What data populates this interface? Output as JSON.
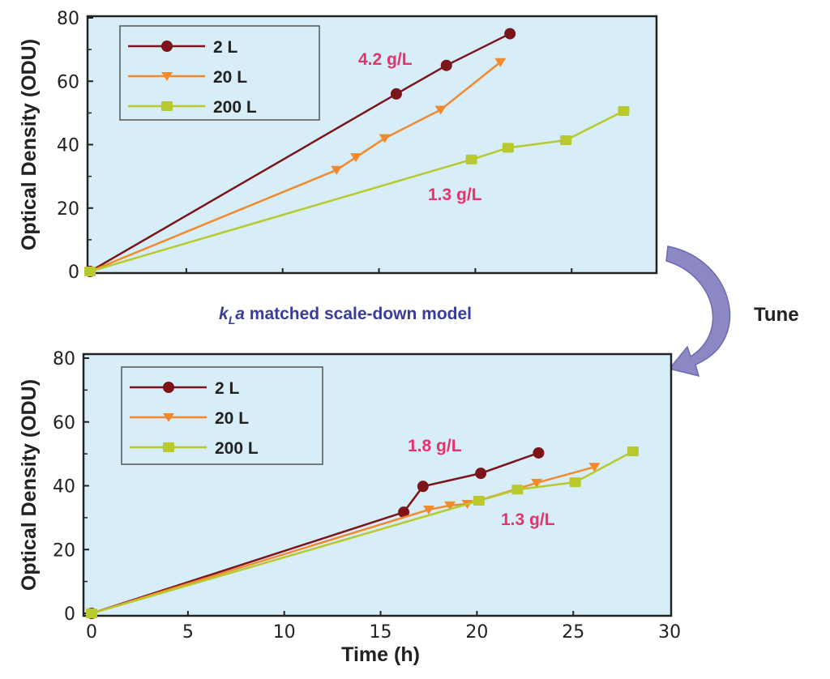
{
  "middle_title": {
    "k": "k",
    "sub": "L",
    "a": "a",
    "rest": " matched scale-down model"
  },
  "tune_label": "Tune",
  "colors": {
    "2L": "#7b1519",
    "20L": "#f28a2d",
    "200L": "#b7c92c",
    "background": "#d7edf7",
    "annotation": "#e6336b"
  },
  "chart_data": [
    {
      "type": "line",
      "title": "",
      "xlabel": "",
      "ylabel": "Optical Density (ODU)",
      "xlim": [
        0,
        30
      ],
      "ylim": [
        0,
        80
      ],
      "yticks": [
        "0",
        "20",
        "40",
        "60",
        "80"
      ],
      "xticks": [],
      "legend": "top-left",
      "annotations": [
        "4.2 g/L",
        "1.3 g/L"
      ],
      "series": [
        {
          "name": "2 L",
          "marker": "circle",
          "x": [
            0,
            15.9,
            18.5,
            21.8
          ],
          "y": [
            0,
            56,
            65,
            75
          ]
        },
        {
          "name": "20 L",
          "marker": "triangle-down",
          "x": [
            0,
            12.8,
            13.8,
            15.3,
            18.2,
            21.3
          ],
          "y": [
            0,
            32,
            36,
            42,
            51,
            66
          ]
        },
        {
          "name": "200 L",
          "marker": "square",
          "x": [
            0,
            19.8,
            21.7,
            24.7,
            27.7
          ],
          "y": [
            0,
            35.3,
            39,
            41.4,
            50.6
          ]
        }
      ]
    },
    {
      "type": "line",
      "title": "",
      "xlabel": "Time (h)",
      "ylabel": "Optical Density (ODU)",
      "xlim": [
        0,
        30
      ],
      "ylim": [
        0,
        80
      ],
      "yticks": [
        "0",
        "20",
        "40",
        "60",
        "80"
      ],
      "xticks": [
        "0",
        "5",
        "10",
        "15",
        "20",
        "25",
        "30"
      ],
      "legend": "top-left",
      "annotations": [
        "1.8 g/L",
        "1.3 g/L"
      ],
      "series": [
        {
          "name": "2 L",
          "marker": "circle",
          "x": [
            0,
            16.2,
            17.2,
            20.2,
            23.2
          ],
          "y": [
            0,
            31.7,
            39.8,
            43.9,
            50.3
          ]
        },
        {
          "name": "20 L",
          "marker": "triangle-down",
          "x": [
            0,
            17.5,
            18.6,
            19.5,
            23.1,
            26.1
          ],
          "y": [
            0,
            32.5,
            33.8,
            34.3,
            40.9,
            45.9
          ]
        },
        {
          "name": "200 L",
          "marker": "square",
          "x": [
            0,
            20.1,
            22.1,
            25.1,
            28.1
          ],
          "y": [
            0,
            35.3,
            38.8,
            41.1,
            50.8
          ]
        }
      ]
    }
  ]
}
